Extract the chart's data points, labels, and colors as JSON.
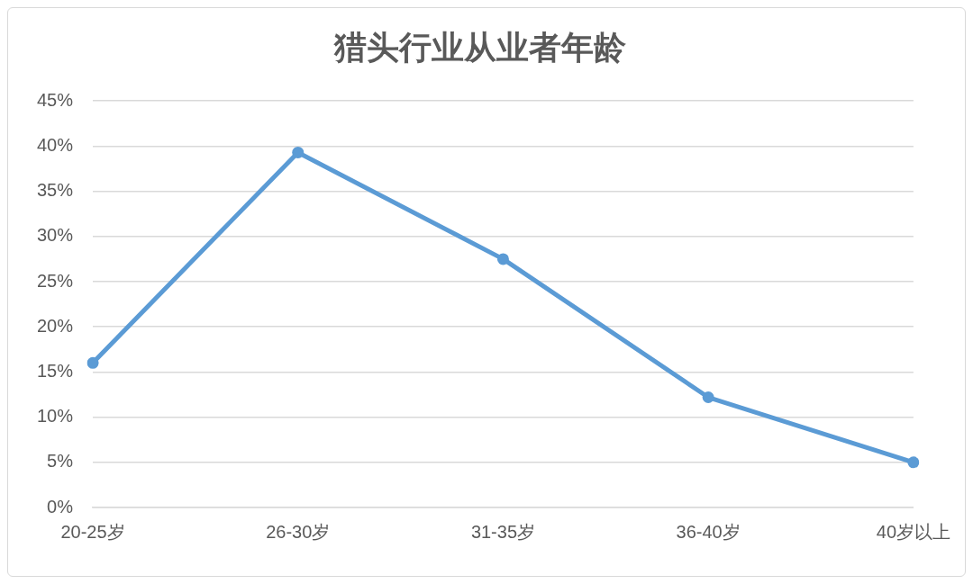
{
  "chart_data": {
    "type": "line",
    "title": "猎头行业从业者年龄",
    "categories": [
      "20-25岁",
      "26-30岁",
      "31-35岁",
      "36-40岁",
      "40岁以上"
    ],
    "series": [
      {
        "color": "#5b9bd5",
        "values": [
          16,
          39.3,
          27.5,
          12.2,
          5
        ]
      }
    ],
    "ylim": [
      0,
      45
    ],
    "yticks": [
      {
        "value": 0,
        "label": "0%"
      },
      {
        "value": 5,
        "label": "5%"
      },
      {
        "value": 10,
        "label": "10%"
      },
      {
        "value": 15,
        "label": "15%"
      },
      {
        "value": 20,
        "label": "20%"
      },
      {
        "value": 25,
        "label": "25%"
      },
      {
        "value": 30,
        "label": "30%"
      },
      {
        "value": 35,
        "label": "35%"
      },
      {
        "value": 40,
        "label": "40%"
      },
      {
        "value": 45,
        "label": "45%"
      }
    ],
    "grid": "y",
    "legend": false,
    "marker": "circle",
    "line_style": "solid"
  }
}
